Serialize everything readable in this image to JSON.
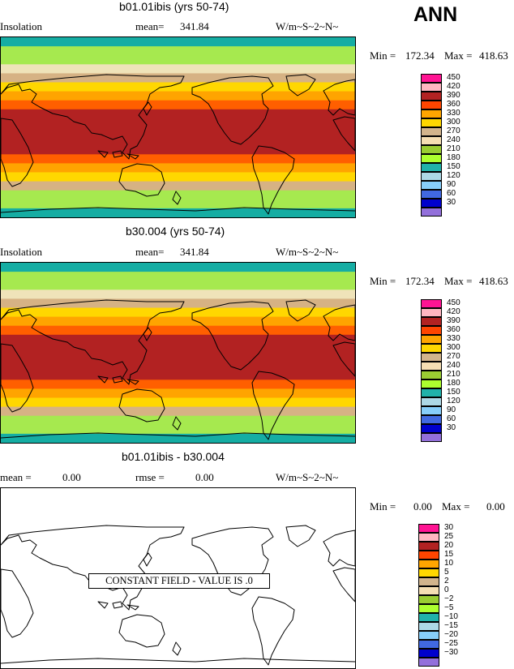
{
  "season": "ANN",
  "band_colors": [
    "#15ADA3",
    "#A6E94F",
    "#A6E94F",
    "#EFE3B9",
    "#D6B284",
    "#FFD700",
    "#FFA400",
    "#FF5F00",
    "#B22222",
    "#B22222",
    "#B22222",
    "#B22222",
    "#B22222",
    "#FF5F00",
    "#FFA400",
    "#FFD700",
    "#D6B284",
    "#A6E94F",
    "#A6E94F",
    "#15ADA3"
  ],
  "panels": [
    {
      "title": "b01.01ibis (yrs 50-74)",
      "left_label": "Insolation",
      "mean_label": "mean=",
      "mean_value": "341.84",
      "units": "W/m~S~2~N~",
      "min_label": "Min =",
      "min_value": "172.34",
      "max_label": "Max =",
      "max_value": "418.63",
      "legend": [
        {
          "label": "450",
          "color": "#FF1493"
        },
        {
          "label": "420",
          "color": "#FFB6C1"
        },
        {
          "label": "390",
          "color": "#B22222"
        },
        {
          "label": "360",
          "color": "#FF4500"
        },
        {
          "label": "330",
          "color": "#FFA500"
        },
        {
          "label": "300",
          "color": "#FFD700"
        },
        {
          "label": "270",
          "color": "#D2B48C"
        },
        {
          "label": "240",
          "color": "#F5DEB3"
        },
        {
          "label": "210",
          "color": "#9ACD32"
        },
        {
          "label": "180",
          "color": "#ADFF2F"
        },
        {
          "label": "150",
          "color": "#20B2AA"
        },
        {
          "label": "120",
          "color": "#ADD8E6"
        },
        {
          "label": "90",
          "color": "#87CEFA"
        },
        {
          "label": "60",
          "color": "#4169E1"
        },
        {
          "label": "30",
          "color": "#0000CD"
        },
        {
          "label": "",
          "color": "#9370DB"
        }
      ]
    },
    {
      "title": "b30.004 (yrs 50-74)",
      "left_label": "Insolation",
      "mean_label": "mean=",
      "mean_value": "341.84",
      "units": "W/m~S~2~N~",
      "min_label": "Min =",
      "min_value": "172.34",
      "max_label": "Max =",
      "max_value": "418.63",
      "legend": [
        {
          "label": "450",
          "color": "#FF1493"
        },
        {
          "label": "420",
          "color": "#FFB6C1"
        },
        {
          "label": "390",
          "color": "#B22222"
        },
        {
          "label": "360",
          "color": "#FF4500"
        },
        {
          "label": "330",
          "color": "#FFA500"
        },
        {
          "label": "300",
          "color": "#FFD700"
        },
        {
          "label": "270",
          "color": "#D2B48C"
        },
        {
          "label": "240",
          "color": "#F5DEB3"
        },
        {
          "label": "210",
          "color": "#9ACD32"
        },
        {
          "label": "180",
          "color": "#ADFF2F"
        },
        {
          "label": "150",
          "color": "#20B2AA"
        },
        {
          "label": "120",
          "color": "#ADD8E6"
        },
        {
          "label": "90",
          "color": "#87CEFA"
        },
        {
          "label": "60",
          "color": "#4169E1"
        },
        {
          "label": "30",
          "color": "#0000CD"
        },
        {
          "label": "",
          "color": "#9370DB"
        }
      ]
    },
    {
      "title": "b01.01ibis - b30.004",
      "mean_label": "mean =",
      "mean_value": "0.00",
      "rmse_label": "rmse =",
      "rmse_value": "0.00",
      "units": "W/m~S~2~N~",
      "min_label": "Min =",
      "min_value": "0.00",
      "max_label": "Max =",
      "max_value": "0.00",
      "message": "CONSTANT FIELD - VALUE IS .0",
      "legend": [
        {
          "label": "30",
          "color": "#FF1493"
        },
        {
          "label": "25",
          "color": "#FFB6C1"
        },
        {
          "label": "20",
          "color": "#B22222"
        },
        {
          "label": "15",
          "color": "#FF4500"
        },
        {
          "label": "10",
          "color": "#FFA500"
        },
        {
          "label": "5",
          "color": "#FFD700"
        },
        {
          "label": "2",
          "color": "#D2B48C"
        },
        {
          "label": "0",
          "color": "#F5DEB3"
        },
        {
          "label": "−2",
          "color": "#9ACD32"
        },
        {
          "label": "−5",
          "color": "#ADFF2F"
        },
        {
          "label": "−10",
          "color": "#20B2AA"
        },
        {
          "label": "−15",
          "color": "#ADD8E6"
        },
        {
          "label": "−20",
          "color": "#87CEFA"
        },
        {
          "label": "−25",
          "color": "#4169E1"
        },
        {
          "label": "−30",
          "color": "#0000CD"
        },
        {
          "label": "",
          "color": "#9370DB"
        }
      ]
    }
  ]
}
